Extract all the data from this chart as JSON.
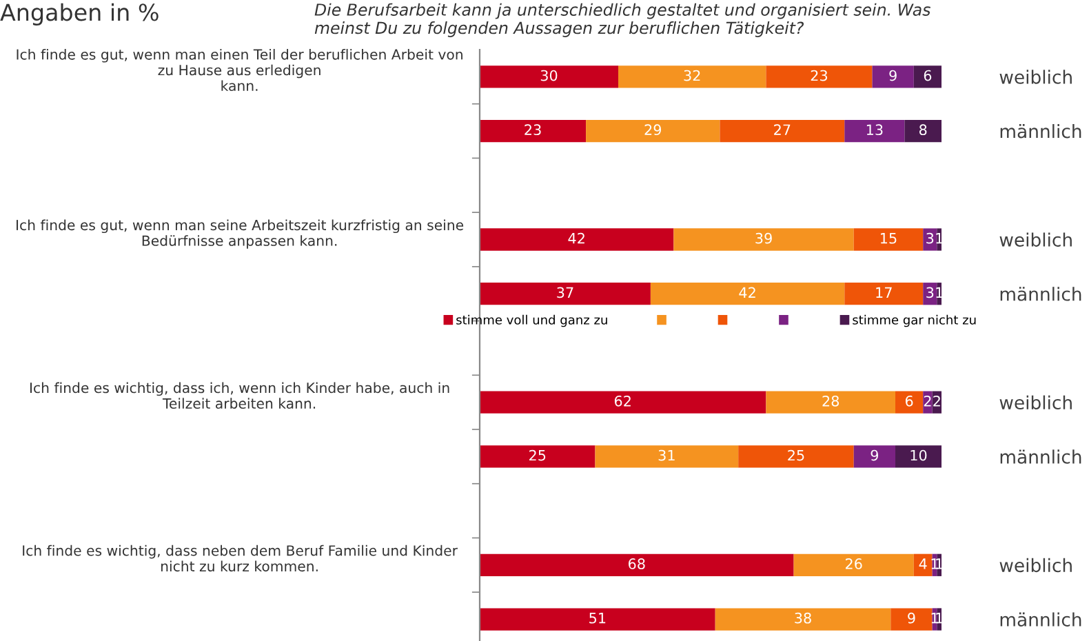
{
  "chart_data": {
    "type": "bar",
    "orientation": "horizontal",
    "stacked": true,
    "data_labels": true,
    "title": "Angaben in %",
    "subtitle": "Die Berufsarbeit kann ja unterschiedlich gestaltet und organisiert sein. Was\nmeinst Du zu folgenden Aussagen zur beruflichen Tätigkeit?",
    "categories": [
      "weiblich",
      "männlich",
      null,
      "weiblich",
      "männlich",
      null,
      "weiblich",
      "männlich",
      null,
      "weiblich",
      "männlich"
    ],
    "annotations": [
      "Ich finde es gut, wenn man einen Teil der beruflichen Arbeit von\nzu Hause aus erledigen\nkann.",
      "Ich finde es gut, wenn man seine Arbeitszeit kurzfristig an seine\nBedürfnisse anpassen kann.",
      "Ich finde es wichtig, dass ich, wenn ich Kinder habe, auch in\nTeilzeit arbeiten kann.",
      "Ich finde es wichtig, dass neben dem Beruf Familie und Kinder\nnicht zu kurz kommen."
    ],
    "xlim": [
      0,
      100
    ],
    "legend": "center",
    "series": [
      {
        "name": "stimme voll und ganz zu",
        "color": "#c8001e",
        "values": [
          30,
          23,
          null,
          42,
          37,
          null,
          62,
          25,
          null,
          68,
          51
        ]
      },
      {
        "color": "#f59320",
        "values": [
          32,
          29,
          null,
          39,
          42,
          null,
          28,
          31,
          null,
          26,
          38
        ]
      },
      {
        "color": "#ef5508",
        "values": [
          23,
          27,
          null,
          15,
          17,
          null,
          6,
          25,
          null,
          4,
          9
        ]
      },
      {
        "color": "#7b2283",
        "values": [
          9,
          13,
          null,
          3,
          3,
          null,
          2,
          9,
          null,
          1,
          1
        ]
      },
      {
        "name": "stimme gar nicht zu",
        "color": "#4a1a4f",
        "values": [
          6,
          8,
          null,
          1,
          1,
          null,
          2,
          10,
          null,
          1,
          1
        ]
      }
    ]
  }
}
